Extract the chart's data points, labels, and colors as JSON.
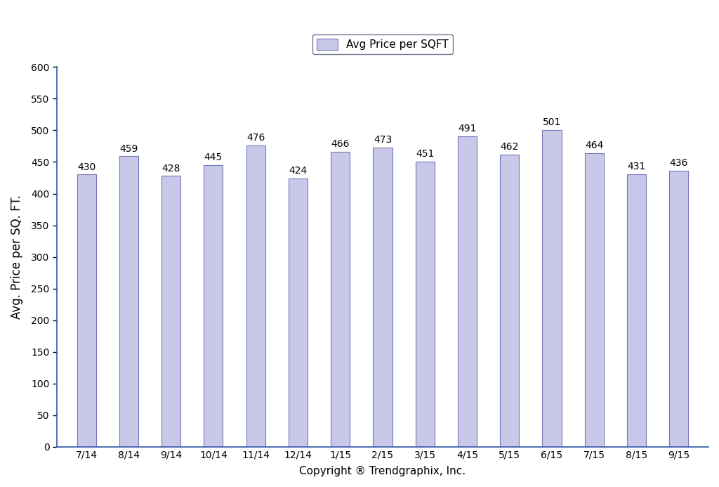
{
  "categories": [
    "7/14",
    "8/14",
    "9/14",
    "10/14",
    "11/14",
    "12/14",
    "1/15",
    "2/15",
    "3/15",
    "4/15",
    "5/15",
    "6/15",
    "7/15",
    "8/15",
    "9/15"
  ],
  "values": [
    430,
    459,
    428,
    445,
    476,
    424,
    466,
    473,
    451,
    491,
    462,
    501,
    464,
    431,
    436
  ],
  "bar_color": "#c8c8e8",
  "bar_edge_color": "#7777bb",
  "ylabel": "Avg. Price per SQ. FT.",
  "xlabel": "Copyright ® Trendgraphix, Inc.",
  "ylim": [
    0,
    600
  ],
  "yticks": [
    0,
    50,
    100,
    150,
    200,
    250,
    300,
    350,
    400,
    450,
    500,
    550,
    600
  ],
  "legend_label": "Avg Price per SQFT",
  "background_color": "#ffffff",
  "bar_width": 0.45,
  "label_fontsize": 10,
  "tick_fontsize": 10,
  "ylabel_fontsize": 12,
  "xlabel_fontsize": 11
}
